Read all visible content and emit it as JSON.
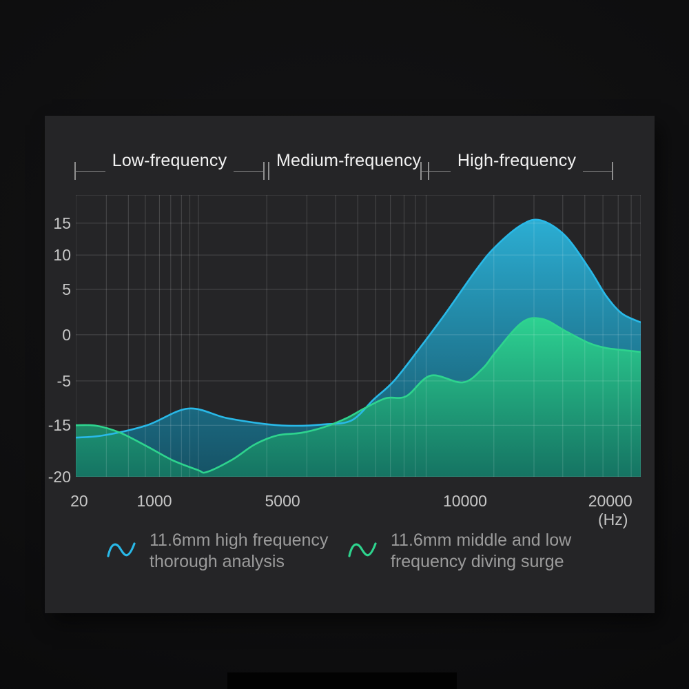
{
  "bands": [
    {
      "label": "Low-frequency"
    },
    {
      "label": "Medium-frequency"
    },
    {
      "label": "High-frequency"
    }
  ],
  "chart_data": {
    "type": "area",
    "title": "",
    "xlabel": "",
    "ylabel": "",
    "x_unit": "(Hz)",
    "grid": true,
    "legend_position": "bottom",
    "x_scale": "logarithmic-stylized",
    "x_ticks": [
      {
        "label": "20",
        "pct": 0.6
      },
      {
        "label": "1000",
        "pct": 13.9
      },
      {
        "label": "5000",
        "pct": 36.6
      },
      {
        "label": "10000",
        "pct": 68.9
      },
      {
        "label": "20000",
        "pct": 94.6
      }
    ],
    "y_ticks": [
      {
        "label": "15",
        "pct": 10.0
      },
      {
        "label": "10",
        "pct": 21.3
      },
      {
        "label": "5",
        "pct": 33.5
      },
      {
        "label": "0",
        "pct": 49.6
      },
      {
        "label": "-5",
        "pct": 66.0
      },
      {
        "label": "-15",
        "pct": 81.7
      },
      {
        "label": "-20",
        "pct": 100.0
      }
    ],
    "ylim": [
      -20,
      17
    ],
    "x_gridlines_pct": [
      0,
      5.4,
      9.3,
      12.3,
      14.8,
      16.8,
      18.7,
      20.2,
      21.7,
      33.8,
      40.9,
      46.0,
      49.9,
      53.1,
      55.7,
      58.1,
      60.1,
      62.0,
      74.0,
      81.1,
      86.2,
      90.1,
      93.3,
      96.0,
      98.3,
      100
    ],
    "y_gridlines_pct": [
      0,
      10.0,
      21.3,
      33.5,
      49.6,
      66.0,
      81.7,
      100
    ],
    "series": [
      {
        "name": "11.6mm high frequency thorough analysis",
        "color": "#29b9e8",
        "fill_top": "#2cb5dc",
        "fill_top_opacity": 0.95,
        "fill_bottom": "#135a70",
        "fill_bottom_opacity": 0.85,
        "points_pct": [
          [
            0,
            86.1
          ],
          [
            4.9,
            85.3
          ],
          [
            12.6,
            81.7
          ],
          [
            19.9,
            75.8
          ],
          [
            26.8,
            79.2
          ],
          [
            34.1,
            81.4
          ],
          [
            39.0,
            81.9
          ],
          [
            43.9,
            81.4
          ],
          [
            48.8,
            80.0
          ],
          [
            52.7,
            72.6
          ],
          [
            56.3,
            66.0
          ],
          [
            60.7,
            54.8
          ],
          [
            65.6,
            41.6
          ],
          [
            71.0,
            26.2
          ],
          [
            74.4,
            18.1
          ],
          [
            79.0,
            10.5
          ],
          [
            82.3,
            9.0
          ],
          [
            86.6,
            14.4
          ],
          [
            90.9,
            26.2
          ],
          [
            93.9,
            35.9
          ],
          [
            96.7,
            42.1
          ],
          [
            100,
            45.2
          ]
        ],
        "values_db": [
          -16.2,
          -16.0,
          -15.0,
          -11.3,
          -13.4,
          -14.8,
          -15.1,
          -14.8,
          -13.9,
          -9.2,
          -5.0,
          -1.6,
          2.5,
          8.0,
          11.4,
          14.8,
          15.5,
          13.0,
          8.0,
          4.2,
          2.3,
          1.4
        ]
      },
      {
        "name": "11.6mm middle and low frequency diving surge",
        "color": "#2ed48e",
        "fill_top": "#2ed88f",
        "fill_top_opacity": 0.92,
        "fill_bottom": "#157b62",
        "fill_bottom_opacity": 0.82,
        "points_pct": [
          [
            0,
            81.7
          ],
          [
            3.7,
            81.9
          ],
          [
            7.9,
            84.4
          ],
          [
            12.6,
            89.2
          ],
          [
            17.1,
            94.1
          ],
          [
            21.6,
            97.6
          ],
          [
            23.2,
            98.3
          ],
          [
            27.7,
            93.9
          ],
          [
            31.7,
            88.5
          ],
          [
            35.7,
            85.3
          ],
          [
            39.9,
            84.4
          ],
          [
            43.9,
            82.4
          ],
          [
            47.9,
            79.2
          ],
          [
            51.2,
            75.6
          ],
          [
            54.9,
            72.1
          ],
          [
            58.5,
            71.4
          ],
          [
            62.8,
            64.1
          ],
          [
            68.5,
            66.5
          ],
          [
            72.0,
            61.6
          ],
          [
            74.4,
            55.5
          ],
          [
            79.0,
            45.2
          ],
          [
            82.6,
            44.0
          ],
          [
            86.6,
            48.2
          ],
          [
            90.9,
            52.6
          ],
          [
            93.9,
            54.3
          ],
          [
            96.7,
            55.0
          ],
          [
            100,
            55.7
          ]
        ],
        "values_db": [
          -15.0,
          -15.1,
          -15.7,
          -17.1,
          -18.4,
          -19.3,
          -19.5,
          -18.3,
          -16.9,
          -16.0,
          -15.7,
          -15.2,
          -13.4,
          -11.1,
          -8.9,
          -8.4,
          -4.4,
          -5.2,
          -3.7,
          -1.8,
          1.4,
          1.7,
          0.4,
          -0.9,
          -1.4,
          -1.6,
          -1.9
        ]
      }
    ]
  },
  "legend": [
    {
      "wave_color": "#29b9e8",
      "line1": "11.6mm high frequency",
      "line2": "thorough analysis"
    },
    {
      "wave_color": "#2ed48e",
      "line1": "11.6mm middle and low",
      "line2": "frequency diving surge"
    }
  ],
  "colors": {
    "panel_bg": "#252527",
    "outer_bg": "#0e0e0f",
    "gridline": "rgba(255,255,255,0.17)",
    "band_line": "#8a8a8a",
    "band_text": "#f2f2f2",
    "axis_text": "#c6c6c6",
    "legend_text": "#9b9b9b"
  }
}
